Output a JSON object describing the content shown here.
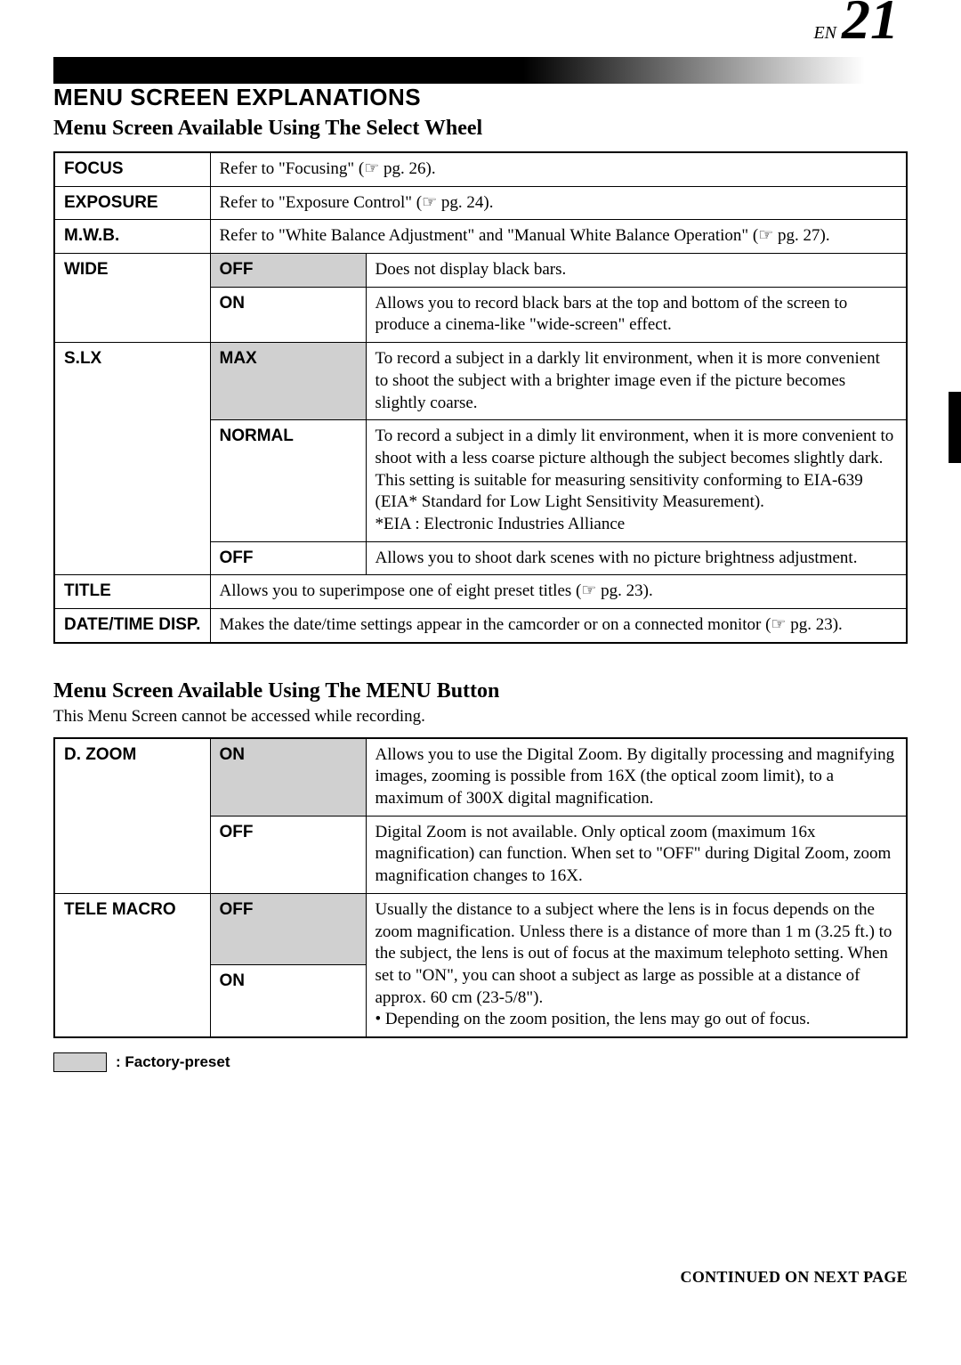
{
  "page": {
    "lang_label": "EN",
    "number": "21"
  },
  "heading": {
    "title": "MENU SCREEN EXPLANATIONS",
    "subtitle1": "Menu Screen Available Using The Select Wheel",
    "subtitle2": "Menu Screen Available Using The MENU Button",
    "subtitle2_note": "This Menu Screen cannot be accessed while recording."
  },
  "pointer_glyph": "☞",
  "table1": {
    "focus": {
      "label": "FOCUS",
      "desc": "Refer to \"Focusing\" (☞ pg. 26)."
    },
    "exposure": {
      "label": "EXPOSURE",
      "desc": "Refer to \"Exposure Control\" (☞ pg. 24)."
    },
    "mwb": {
      "label": "M.W.B.",
      "desc": "Refer to \"White Balance Adjustment\" and \"Manual White Balance Operation\" (☞ pg. 27)."
    },
    "wide": {
      "label": "WIDE",
      "off": {
        "opt": "OFF",
        "desc": "Does not display black bars."
      },
      "on": {
        "opt": "ON",
        "desc": "Allows you to record black bars at the top and bottom of the screen to produce a cinema-like \"wide-screen\" effect."
      }
    },
    "slx": {
      "label": "S.LX",
      "max": {
        "opt": "MAX",
        "desc": "To record a subject in a darkly lit environment, when it is more convenient to shoot the subject with a brighter image even if the picture becomes slightly coarse."
      },
      "normal": {
        "opt": "NORMAL",
        "desc": "To record a subject in a dimly lit environment, when it is more convenient to shoot with a less coarse picture although the subject becomes slightly dark. This setting is suitable for measuring sensitivity conforming to EIA-639 (EIA* Standard for Low Light Sensitivity Measurement).\n*EIA : Electronic Industries Alliance"
      },
      "off": {
        "opt": "OFF",
        "desc": "Allows you to shoot dark scenes with no picture brightness adjustment."
      }
    },
    "title": {
      "label": "TITLE",
      "desc": "Allows you to superimpose one of eight preset titles (☞ pg. 23)."
    },
    "datetime": {
      "label": "DATE/TIME DISP.",
      "desc": "Makes the date/time settings appear in the camcorder or on a connected monitor (☞ pg. 23)."
    }
  },
  "table2": {
    "dzoom": {
      "label": "D. ZOOM",
      "on": {
        "opt": "ON",
        "desc": "Allows you to use the Digital Zoom. By digitally processing and magnifying images, zooming is possible from 16X (the optical zoom limit), to a maximum of 300X digital magnification."
      },
      "off": {
        "opt": "OFF",
        "desc": "Digital Zoom is not available. Only optical zoom (maximum 16x magnification) can function. When set to \"OFF\" during Digital Zoom, zoom magnification changes to 16X."
      }
    },
    "telemacro": {
      "label": "TELE MACRO",
      "off": {
        "opt": "OFF"
      },
      "on": {
        "opt": "ON"
      },
      "desc": "Usually the distance to a subject where the lens is in focus depends on the zoom magnification. Unless there is a distance of more than 1 m (3.25 ft.) to the subject, the lens is out of focus at the maximum telephoto setting. When set to \"ON\", you can shoot a subject as large as possible at a distance of approx. 60 cm (23-5/8\").",
      "bullet": "• Depending on the zoom position, the lens may go out of focus."
    }
  },
  "legend": {
    "text": ": Factory-preset"
  },
  "footer": {
    "text": "CONTINUED ON NEXT PAGE"
  }
}
